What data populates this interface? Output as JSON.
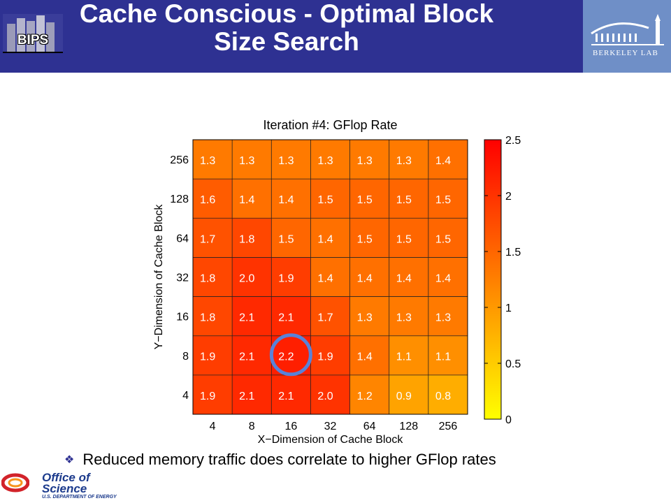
{
  "header": {
    "title": "Cache Conscious - Optimal Block Size Search",
    "bips_label": "BIPS",
    "lab_label": "BERKELEY LAB",
    "colors": {
      "bar": "#2e3192",
      "right_panel": "#6f8fc7"
    }
  },
  "chart_data": {
    "type": "heatmap",
    "title": "Iteration #4: GFlop Rate",
    "xlabel": "X−Dimension of Cache Block",
    "ylabel": "Y−Dimension of Cache Block",
    "x": [
      "4",
      "8",
      "16",
      "32",
      "64",
      "128",
      "256"
    ],
    "y": [
      "256",
      "128",
      "64",
      "32",
      "16",
      "8",
      "4"
    ],
    "values": [
      [
        1.3,
        1.3,
        1.3,
        1.3,
        1.3,
        1.3,
        1.4
      ],
      [
        1.6,
        1.4,
        1.4,
        1.5,
        1.5,
        1.5,
        1.5
      ],
      [
        1.7,
        1.8,
        1.5,
        1.4,
        1.5,
        1.5,
        1.5
      ],
      [
        1.8,
        2.0,
        1.9,
        1.4,
        1.4,
        1.4,
        1.4
      ],
      [
        1.8,
        2.1,
        2.1,
        1.7,
        1.3,
        1.3,
        1.3
      ],
      [
        1.9,
        2.1,
        2.2,
        1.9,
        1.4,
        1.1,
        1.1
      ],
      [
        1.9,
        2.1,
        2.1,
        2.0,
        1.2,
        0.9,
        0.8
      ]
    ],
    "value_labels": [
      [
        "1.3",
        "1.3",
        "1.3",
        "1.3",
        "1.3",
        "1.3",
        "1.4"
      ],
      [
        "1.6",
        "1.4",
        "1.4",
        "1.5",
        "1.5",
        "1.5",
        "1.5"
      ],
      [
        "1.7",
        "1.8",
        "1.5",
        "1.4",
        "1.5",
        "1.5",
        "1.5"
      ],
      [
        "1.8",
        "2.0",
        "1.9",
        "1.4",
        "1.4",
        "1.4",
        "1.4"
      ],
      [
        "1.8",
        "2.1",
        "2.1",
        "1.7",
        "1.3",
        "1.3",
        "1.3"
      ],
      [
        "1.9",
        "2.1",
        "2.2",
        "1.9",
        "1.4",
        "1.1",
        "1.1"
      ],
      [
        "1.9",
        "2.1",
        "2.1",
        "2.0",
        "1.2",
        "0.9",
        "0.8"
      ]
    ],
    "colorbar": {
      "range": [
        0,
        2.5
      ],
      "ticks": [
        0,
        0.5,
        1,
        1.5,
        2,
        2.5
      ],
      "tick_labels": [
        "0",
        "0.5",
        "1",
        "1.5",
        "2",
        "2.5"
      ],
      "colormap": "autumn"
    },
    "highlight": {
      "x": "16",
      "y": "8",
      "color": "#5a82d8"
    }
  },
  "bullet": {
    "text": "Reduced memory traffic does correlate to higher GFlop rates",
    "marker_icon": "diamond-bullet-icon"
  },
  "footer": {
    "org_line1": "Office of",
    "org_line2": "Science",
    "dept": "U.S. DEPARTMENT OF ENERGY"
  }
}
